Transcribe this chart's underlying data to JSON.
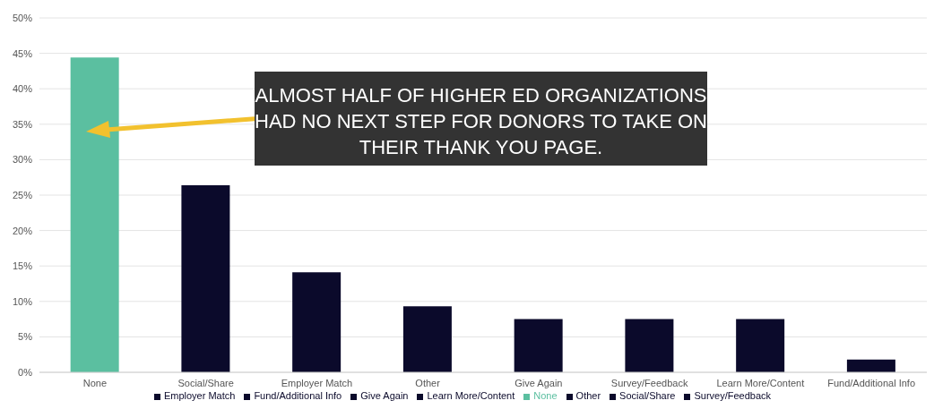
{
  "chart_data": {
    "type": "bar",
    "stacked": true,
    "categories": [
      "None",
      "Social/Share",
      "Employer Match",
      "Other",
      "Give Again",
      "Survey/Feedback",
      "Learn More/Content",
      "Fund/Additional Info"
    ],
    "series": [
      {
        "name": "None",
        "color": "#5bbfa0",
        "values": [
          44.4,
          null,
          null,
          null,
          null,
          null,
          null,
          null
        ]
      },
      {
        "name": "Social/Share",
        "color": "#0b0a2b",
        "values": [
          null,
          26.4,
          null,
          null,
          null,
          null,
          null,
          null
        ]
      },
      {
        "name": "Employer Match",
        "color": "#0b0a2b",
        "values": [
          null,
          null,
          14.1,
          null,
          null,
          null,
          null,
          null
        ]
      },
      {
        "name": "Other",
        "color": "#0b0a2b",
        "values": [
          null,
          null,
          null,
          9.3,
          null,
          null,
          null,
          null
        ]
      },
      {
        "name": "Give Again",
        "color": "#0b0a2b",
        "values": [
          null,
          null,
          null,
          null,
          7.5,
          null,
          null,
          null
        ]
      },
      {
        "name": "Survey/Feedback",
        "color": "#0b0a2b",
        "values": [
          null,
          null,
          null,
          null,
          null,
          7.5,
          null,
          null
        ]
      },
      {
        "name": "Learn More/Content",
        "color": "#0b0a2b",
        "values": [
          null,
          null,
          null,
          null,
          null,
          null,
          7.5,
          null
        ]
      },
      {
        "name": "Fund/Additional Info",
        "color": "#0b0a2b",
        "values": [
          null,
          null,
          null,
          null,
          null,
          null,
          null,
          1.8
        ]
      }
    ],
    "ylim": [
      0,
      50
    ],
    "yticks": [
      {
        "value": 0,
        "label": "0%"
      },
      {
        "value": 5,
        "label": "5%"
      },
      {
        "value": 10,
        "label": "10%"
      },
      {
        "value": 15,
        "label": "15%"
      },
      {
        "value": 20,
        "label": "20%"
      },
      {
        "value": 25,
        "label": "25%"
      },
      {
        "value": 30,
        "label": "30%"
      },
      {
        "value": 35,
        "label": "35%"
      },
      {
        "value": 40,
        "label": "40%"
      },
      {
        "value": 45,
        "label": "45%"
      },
      {
        "value": 50,
        "label": "50%"
      }
    ],
    "grid": "y",
    "legend": "bottom",
    "annotations": [
      "ALMOST HALF OF HIGHER ED ORGANIZATIONS HAD NO NEXT STEP FOR DONORS TO TAKE ON THEIR THANK YOU PAGE."
    ]
  }
}
